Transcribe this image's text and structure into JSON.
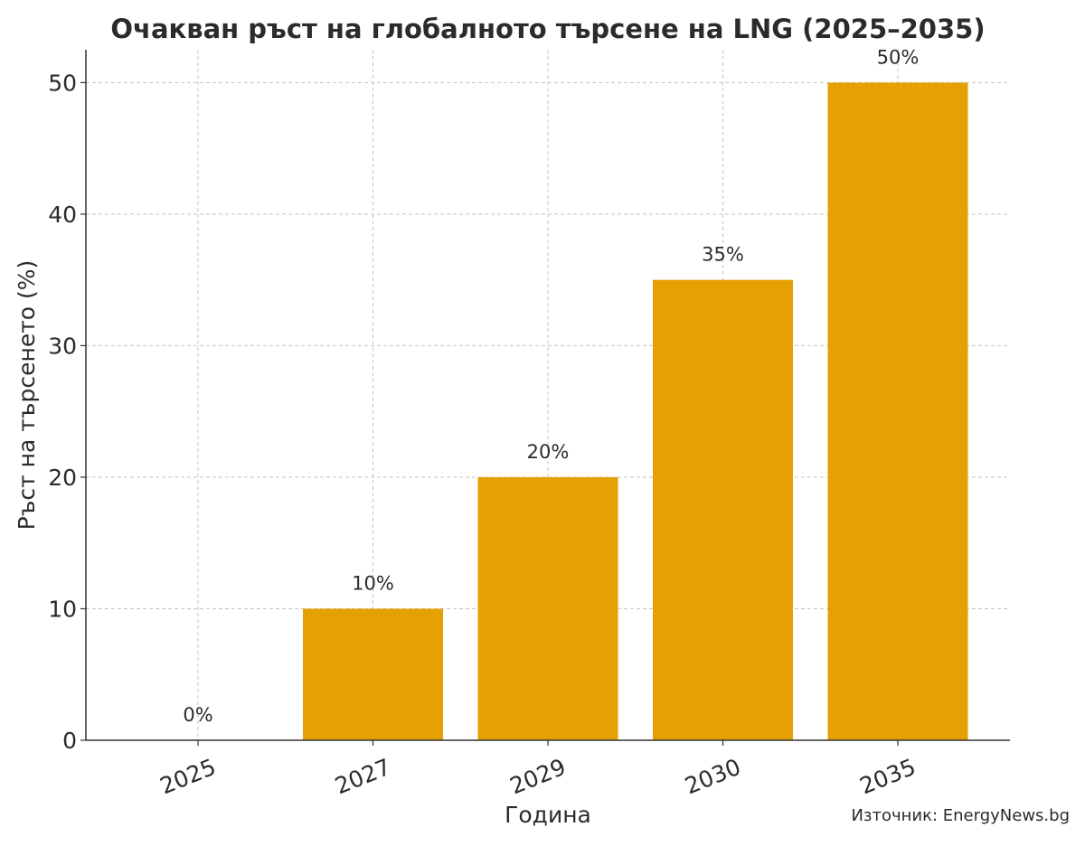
{
  "chart_data": {
    "type": "bar",
    "title": "Очакван ръст на глобалното търсене на LNG (2025–2035)",
    "xlabel": "Година",
    "ylabel": "Ръст на търсенето (%)",
    "categories": [
      "2025",
      "2027",
      "2029",
      "2030",
      "2035"
    ],
    "values": [
      0,
      10,
      20,
      35,
      50
    ],
    "data_labels": [
      "0%",
      "10%",
      "20%",
      "35%",
      "50%"
    ],
    "ylim": [
      0,
      52.5
    ],
    "yticks": [
      0,
      10,
      20,
      30,
      40,
      50
    ],
    "ytick_labels": [
      "0",
      "10",
      "20",
      "30",
      "40",
      "50"
    ],
    "grid": true,
    "bar_color": "#e5a004",
    "source": "Източник: EnergyNews.bg"
  }
}
